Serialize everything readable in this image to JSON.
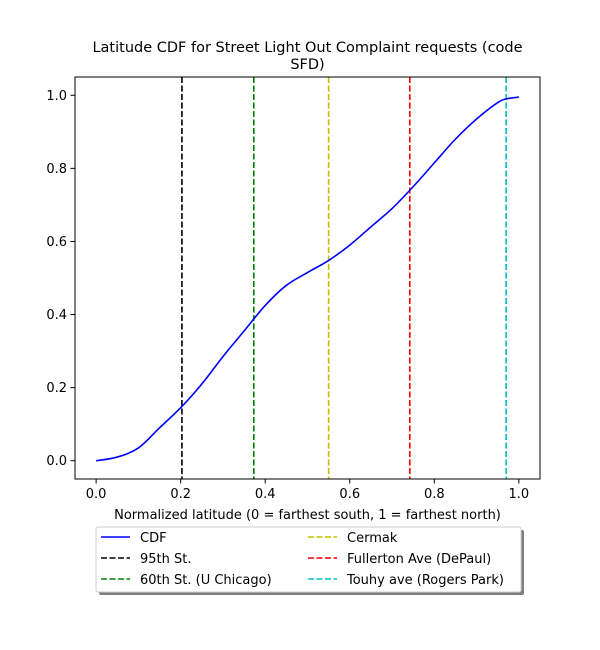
{
  "chart_data": {
    "type": "line",
    "title_lines": [
      "Latitude CDF for Street Light Out Complaint  requests (code",
      "SFD)"
    ],
    "xlabel": "Normalized latitude (0 = farthest south, 1 = farthest north)",
    "ylabel": "",
    "xlim": [
      -0.05,
      1.05
    ],
    "ylim": [
      -0.05,
      1.05
    ],
    "xticks": [
      0.0,
      0.2,
      0.4,
      0.6,
      0.8,
      1.0
    ],
    "xtick_labels": [
      "0.0",
      "0.2",
      "0.4",
      "0.6",
      "0.8",
      "1.0"
    ],
    "yticks": [
      0.0,
      0.2,
      0.4,
      0.6,
      0.8,
      1.0
    ],
    "ytick_labels": [
      "0.0",
      "0.2",
      "0.4",
      "0.6",
      "0.8",
      "1.0"
    ],
    "grid": false,
    "legend_position": "below",
    "cdf": {
      "name": "CDF",
      "color": "#0000ff",
      "x": [
        0.0,
        0.05,
        0.1,
        0.15,
        0.2,
        0.25,
        0.3,
        0.35,
        0.4,
        0.45,
        0.5,
        0.55,
        0.6,
        0.65,
        0.7,
        0.75,
        0.8,
        0.85,
        0.9,
        0.95,
        0.97,
        1.0
      ],
      "y": [
        0.0,
        0.01,
        0.035,
        0.09,
        0.145,
        0.21,
        0.285,
        0.355,
        0.425,
        0.48,
        0.515,
        0.548,
        0.59,
        0.64,
        0.69,
        0.75,
        0.815,
        0.88,
        0.935,
        0.98,
        0.99,
        0.995
      ]
    },
    "reference_lines": [
      {
        "name": "95th St.",
        "x": 0.203,
        "color": "#000000"
      },
      {
        "name": "60th St. (U Chicago)",
        "x": 0.373,
        "color": "#008000"
      },
      {
        "name": "Cermak",
        "x": 0.55,
        "color": "#bfbf00"
      },
      {
        "name": "Fullerton Ave (DePaul)",
        "x": 0.742,
        "color": "#ff0000"
      },
      {
        "name": "Touhy ave (Rogers Park)",
        "x": 0.97,
        "color": "#00bfbf"
      }
    ]
  }
}
